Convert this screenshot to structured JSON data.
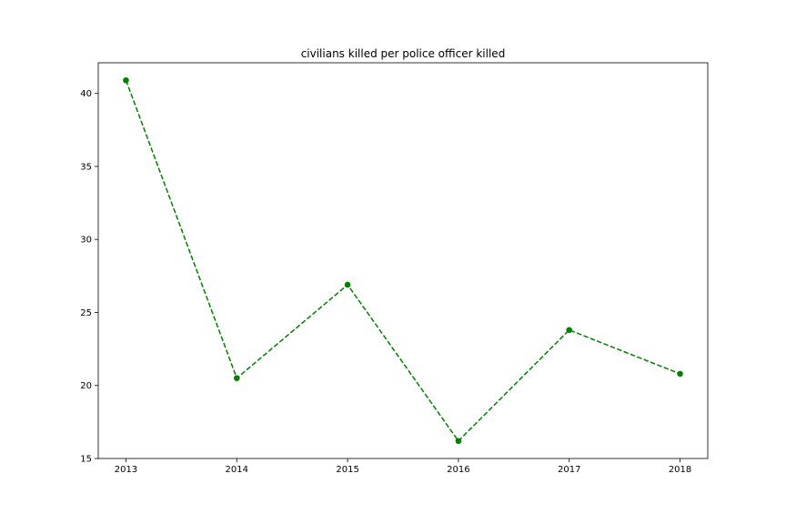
{
  "chart_data": {
    "type": "line",
    "title": "civilians killed per police officer killed",
    "xlabel": "",
    "ylabel": "",
    "x": [
      2013,
      2014,
      2015,
      2016,
      2017,
      2018
    ],
    "series": [
      {
        "values": [
          40.9,
          20.5,
          26.9,
          16.2,
          23.8,
          20.8
        ],
        "color": "#008000",
        "line_style": "dashed",
        "marker": "circle"
      }
    ],
    "xlim": [
      2012.75,
      2018.25
    ],
    "ylim": [
      15.0,
      42.1
    ],
    "xticks": [
      "2013",
      "2014",
      "2015",
      "2016",
      "2017",
      "2018"
    ],
    "yticks": [
      "15",
      "20",
      "25",
      "30",
      "35",
      "40"
    ],
    "grid": false,
    "legend": "none"
  }
}
